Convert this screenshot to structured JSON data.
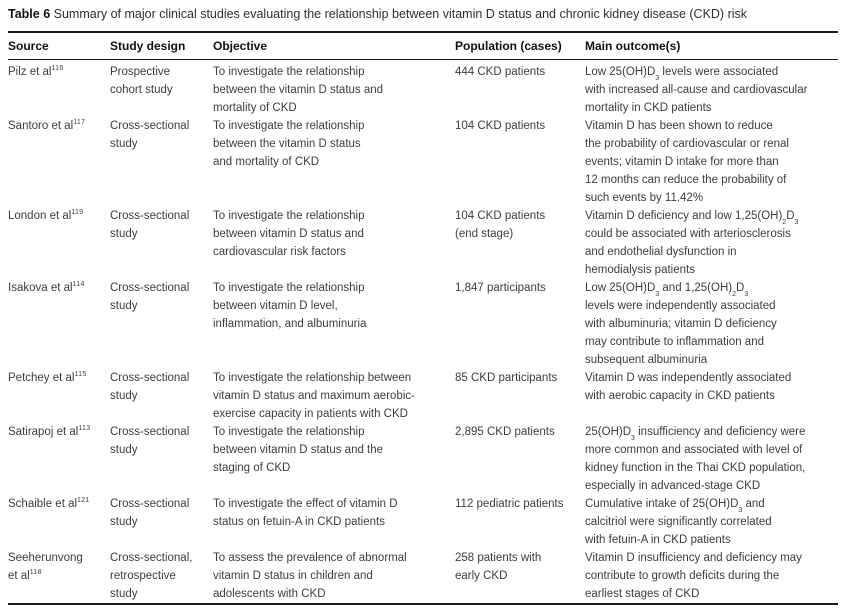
{
  "colors": {
    "text": "#3d3d3d",
    "heading": "#111111",
    "rule": "#1c1c1c",
    "background": "#ffffff"
  },
  "title": {
    "label": "Table 6",
    "text": "Summary of major clinical studies evaluating the relationship between vitamin D status and chronic kidney disease (CKD) risk"
  },
  "table": {
    "columns": [
      {
        "key": "source",
        "label": "Source"
      },
      {
        "key": "design",
        "label": "Study design"
      },
      {
        "key": "objective",
        "label": "Objective"
      },
      {
        "key": "population",
        "label": "Population (cases)"
      },
      {
        "key": "outcome",
        "label": "Main outcome(s)"
      }
    ],
    "rows": [
      {
        "source": "Pilz et al^{116}",
        "design": "Prospective\ncohort study",
        "objective": "To investigate the relationship\nbetween the vitamin D status and\nmortality of CKD",
        "population": "444 CKD patients",
        "outcome": "Low 25(OH)D_{3} levels were associated\nwith increased all-cause and cardiovascular\nmortality in CKD patients"
      },
      {
        "source": "Santoro et al^{117}",
        "design": "Cross-sectional\nstudy",
        "objective": "To investigate the relationship\nbetween the vitamin D status\nand mortality of CKD",
        "population": "104 CKD patients",
        "outcome": "Vitamin D has been shown to reduce\nthe probability of cardiovascular or renal\nevents; vitamin D intake for more than\n12 months can reduce the probability of\nsuch events by 11.42%"
      },
      {
        "source": "London et al^{119}",
        "design": "Cross-sectional\nstudy",
        "objective": "To investigate the relationship\nbetween vitamin D status and\ncardiovascular risk factors",
        "population": "104 CKD patients\n(end stage)",
        "outcome": "Vitamin D deficiency and low 1,25(OH)_{2}D_{3}\ncould be associated with arteriosclerosis\nand endothelial dysfunction in\nhemodialysis patients"
      },
      {
        "source": "Isakova et al^{114}",
        "design": "Cross-sectional\nstudy",
        "objective": "To investigate the relationship\nbetween vitamin D level,\ninflammation, and albuminuria",
        "population": "1,847 participants",
        "outcome": "Low 25(OH)D_{3} and 1,25(OH)_{2}D_{3}\nlevels were independently associated\nwith albuminuria; vitamin D deficiency\nmay contribute to inflammation and\nsubsequent albuminuria"
      },
      {
        "source": "Petchey et al^{115}",
        "design": "Cross-sectional\nstudy",
        "objective": "To investigate the relationship between\nvitamin D status and maximum aerobic-\nexercise capacity in patients with CKD",
        "population": "85 CKD participants",
        "outcome": "Vitamin D was independently associated\nwith aerobic capacity in CKD patients"
      },
      {
        "source": "Satirapoj et al^{113}",
        "design": "Cross-sectional\nstudy",
        "objective": "To investigate the relationship\nbetween vitamin D status and the\nstaging of CKD",
        "population": "2,895 CKD patients",
        "outcome": "25(OH)D_{3} insufficiency and deficiency were\nmore common and associated with level of\nkidney function in the Thai CKD population,\nespecially in advanced-stage CKD"
      },
      {
        "source": "Schaible et al^{121}",
        "design": "Cross-sectional\nstudy",
        "objective": "To investigate the effect of vitamin D\nstatus on fetuin-A in CKD patients",
        "population": "112 pediatric patients",
        "outcome": "Cumulative intake of 25(OH)D_{3} and\ncalcitriol were significantly correlated\nwith fetuin-A in CKD patients"
      },
      {
        "source": "Seeherunvong\net al^{118}",
        "design": "Cross-sectional,\nretrospective\nstudy",
        "objective": "To assess the prevalence of abnormal\nvitamin D status in children and\nadolescents with CKD",
        "population": "258 patients with\nearly CKD",
        "outcome": "Vitamin D insufficiency and deficiency may\ncontribute to growth deficits during the\nearliest stages of CKD"
      }
    ]
  }
}
